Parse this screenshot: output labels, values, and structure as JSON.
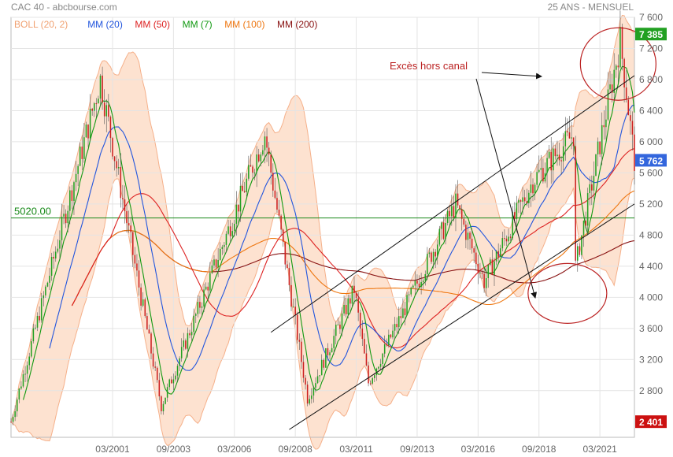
{
  "header": {
    "title": "CAC 40 - abcbourse.com",
    "period": "25 ANS - MENSUEL"
  },
  "legend": [
    {
      "label": "BOLL (20, 2)",
      "color": "#f0a070"
    },
    {
      "label": "MM (20)",
      "color": "#2255dd"
    },
    {
      "label": "MM (50)",
      "color": "#dd2222"
    },
    {
      "label": "MM (7)",
      "color": "#119911"
    },
    {
      "label": "MM (100)",
      "color": "#ee7711"
    },
    {
      "label": "MM (200)",
      "color": "#881111"
    }
  ],
  "colors": {
    "up": "#22a022",
    "down": "#cc2020",
    "band_fill": "#fde2d0",
    "band_line": "#f5b08a",
    "hline": "#1a8a1a",
    "badge_red": "#cc1111",
    "badge_green": "#22a022",
    "badge_blue": "#3366dd"
  },
  "chart_data": {
    "type": "candlestick",
    "title": "CAC 40",
    "y_range": [
      2200,
      7600
    ],
    "y_ticks": [
      7600,
      7200,
      6800,
      6400,
      6000,
      5600,
      5200,
      4800,
      4400,
      4000,
      3600,
      3200,
      2800
    ],
    "x_labels": [
      "03/2001",
      "09/2003",
      "03/2006",
      "09/2008",
      "03/2011",
      "09/2013",
      "03/2016",
      "09/2018",
      "03/2021"
    ],
    "x_range": [
      "1997-01",
      "2022-08"
    ],
    "key_points": [
      {
        "date": "1997-01",
        "close": 2400
      },
      {
        "date": "1998-07",
        "close": 4200
      },
      {
        "date": "2000-09",
        "close": 6800
      },
      {
        "date": "2003-03",
        "close": 2600
      },
      {
        "date": "2007-06",
        "close": 6100
      },
      {
        "date": "2009-03",
        "close": 2700
      },
      {
        "date": "2011-02",
        "close": 4100
      },
      {
        "date": "2011-09",
        "close": 2900
      },
      {
        "date": "2015-04",
        "close": 5200
      },
      {
        "date": "2016-06",
        "close": 4200
      },
      {
        "date": "2018-06",
        "close": 5500
      },
      {
        "date": "2020-02",
        "close": 6100
      },
      {
        "date": "2020-03",
        "close": 4400
      },
      {
        "date": "2022-01",
        "close": 7300
      },
      {
        "date": "2022-08",
        "close": 5762
      }
    ],
    "horizontal_line": {
      "value": 5020.0,
      "label": "5020.00"
    },
    "price_badges": [
      {
        "value": 7385,
        "label": "7 385",
        "kind": "high"
      },
      {
        "value": 5762,
        "label": "5 762",
        "kind": "last"
      },
      {
        "value": 2401,
        "label": "2 401",
        "kind": "low"
      }
    ],
    "channel_lines": [
      {
        "from": {
          "date": "2007-09",
          "value": 3550
        },
        "to": {
          "date": "2022-08",
          "value": 6850
        }
      },
      {
        "from": {
          "date": "2008-06",
          "value": 2300
        },
        "to": {
          "date": "2022-08",
          "value": 5200
        }
      }
    ],
    "annotations": [
      {
        "text": "Excès hors canal"
      }
    ]
  }
}
